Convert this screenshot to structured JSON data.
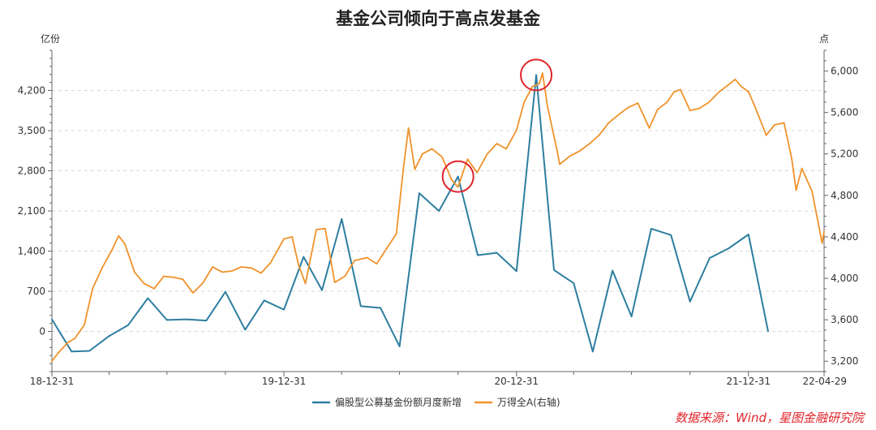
{
  "chart_data": {
    "type": "line",
    "title": "基金公司倾向于高点发基金",
    "left_axis": {
      "unit": "亿份",
      "ylim": [
        -700,
        4900
      ],
      "ticks": [
        0,
        700,
        1400,
        2100,
        2800,
        3500,
        4200
      ],
      "tick_labels": [
        "0",
        "700",
        "1,400",
        "2,100",
        "2,800",
        "3,500",
        "4,200"
      ]
    },
    "right_axis": {
      "unit": "点",
      "ylim": [
        3100,
        6200
      ],
      "ticks": [
        3200,
        3600,
        4000,
        4400,
        4800,
        5200,
        5600,
        6000
      ],
      "tick_labels": [
        "3,200",
        "3,600",
        "4,000",
        "4,400",
        "4,800",
        "5,200",
        "5,600",
        "6,000"
      ]
    },
    "x_axis": {
      "start": "2018-12-31",
      "end": "2022-04-29",
      "tick_labels": [
        "18-12-31",
        "19-12-31",
        "20-12-31",
        "21-12-31",
        "22-04-29"
      ],
      "tick_dates": [
        "2018-12-31",
        "2019-12-31",
        "2020-12-31",
        "2021-12-31",
        "2022-04-29"
      ],
      "minor_tick_dates": [
        "2019-03-31",
        "2019-06-30",
        "2019-09-30",
        "2020-03-31",
        "2020-06-30",
        "2020-09-30",
        "2021-03-31",
        "2021-06-30",
        "2021-09-30"
      ]
    },
    "grid": "horizontal-dashed",
    "legend_position": "bottom",
    "series": [
      {
        "name": "偏股型公募基金份额月度新增",
        "axis": "left",
        "color": "#2e7ea0",
        "points": [
          [
            "2018-12-31",
            210
          ],
          [
            "2019-01-31",
            -350
          ],
          [
            "2019-02-28",
            -340
          ],
          [
            "2019-03-31",
            -80
          ],
          [
            "2019-04-30",
            110
          ],
          [
            "2019-05-31",
            580
          ],
          [
            "2019-06-30",
            200
          ],
          [
            "2019-07-31",
            210
          ],
          [
            "2019-08-31",
            190
          ],
          [
            "2019-09-30",
            690
          ],
          [
            "2019-10-31",
            30
          ],
          [
            "2019-11-30",
            540
          ],
          [
            "2019-12-31",
            380
          ],
          [
            "2020-01-31",
            1300
          ],
          [
            "2020-02-29",
            720
          ],
          [
            "2020-03-31",
            1960
          ],
          [
            "2020-04-30",
            440
          ],
          [
            "2020-05-31",
            410
          ],
          [
            "2020-06-30",
            -260
          ],
          [
            "2020-07-31",
            2410
          ],
          [
            "2020-08-31",
            2100
          ],
          [
            "2020-09-30",
            2700
          ],
          [
            "2020-10-31",
            1330
          ],
          [
            "2020-11-30",
            1370
          ],
          [
            "2020-12-31",
            1050
          ],
          [
            "2021-01-31",
            4470
          ],
          [
            "2021-02-28",
            1070
          ],
          [
            "2021-03-31",
            840
          ],
          [
            "2021-04-30",
            -350
          ],
          [
            "2021-05-31",
            1060
          ],
          [
            "2021-06-30",
            260
          ],
          [
            "2021-07-31",
            1790
          ],
          [
            "2021-08-31",
            1680
          ],
          [
            "2021-09-30",
            520
          ],
          [
            "2021-10-31",
            1280
          ],
          [
            "2021-11-30",
            1450
          ],
          [
            "2021-12-31",
            1690
          ],
          [
            "2022-01-31",
            0
          ]
        ]
      },
      {
        "name": "万得全A(右轴)",
        "axis": "right",
        "color": "#f0922b",
        "points": [
          [
            "2018-12-31",
            3200
          ],
          [
            "2019-01-10",
            3280
          ],
          [
            "2019-01-25",
            3380
          ],
          [
            "2019-02-05",
            3420
          ],
          [
            "2019-02-20",
            3550
          ],
          [
            "2019-03-05",
            3900
          ],
          [
            "2019-03-20",
            4100
          ],
          [
            "2019-04-05",
            4280
          ],
          [
            "2019-04-15",
            4410
          ],
          [
            "2019-04-25",
            4330
          ],
          [
            "2019-05-10",
            4060
          ],
          [
            "2019-05-25",
            3950
          ],
          [
            "2019-06-10",
            3900
          ],
          [
            "2019-06-25",
            4020
          ],
          [
            "2019-07-10",
            4010
          ],
          [
            "2019-07-25",
            3990
          ],
          [
            "2019-08-10",
            3860
          ],
          [
            "2019-08-25",
            3950
          ],
          [
            "2019-09-10",
            4110
          ],
          [
            "2019-09-25",
            4060
          ],
          [
            "2019-10-10",
            4070
          ],
          [
            "2019-10-25",
            4110
          ],
          [
            "2019-11-10",
            4100
          ],
          [
            "2019-11-25",
            4050
          ],
          [
            "2019-12-10",
            4150
          ],
          [
            "2019-12-31",
            4380
          ],
          [
            "2020-01-13",
            4400
          ],
          [
            "2020-01-23",
            4130
          ],
          [
            "2020-02-03",
            3950
          ],
          [
            "2020-02-20",
            4470
          ],
          [
            "2020-03-05",
            4480
          ],
          [
            "2020-03-20",
            3960
          ],
          [
            "2020-04-05",
            4020
          ],
          [
            "2020-04-20",
            4170
          ],
          [
            "2020-05-10",
            4200
          ],
          [
            "2020-05-25",
            4140
          ],
          [
            "2020-06-10",
            4290
          ],
          [
            "2020-06-25",
            4430
          ],
          [
            "2020-07-06",
            5060
          ],
          [
            "2020-07-14",
            5450
          ],
          [
            "2020-07-24",
            5050
          ],
          [
            "2020-08-05",
            5200
          ],
          [
            "2020-08-20",
            5250
          ],
          [
            "2020-09-05",
            5170
          ],
          [
            "2020-09-20",
            4950
          ],
          [
            "2020-09-30",
            4880
          ],
          [
            "2020-10-15",
            5150
          ],
          [
            "2020-10-30",
            5020
          ],
          [
            "2020-11-15",
            5200
          ],
          [
            "2020-11-30",
            5300
          ],
          [
            "2020-12-15",
            5250
          ],
          [
            "2020-12-31",
            5430
          ],
          [
            "2021-01-12",
            5700
          ],
          [
            "2021-01-25",
            5850
          ],
          [
            "2021-02-05",
            5880
          ],
          [
            "2021-02-10",
            5980
          ],
          [
            "2021-02-18",
            5650
          ],
          [
            "2021-03-05",
            5230
          ],
          [
            "2021-03-09",
            5100
          ],
          [
            "2021-03-25",
            5180
          ],
          [
            "2021-04-10",
            5230
          ],
          [
            "2021-04-25",
            5300
          ],
          [
            "2021-05-10",
            5380
          ],
          [
            "2021-05-25",
            5500
          ],
          [
            "2021-06-10",
            5580
          ],
          [
            "2021-06-25",
            5650
          ],
          [
            "2021-07-10",
            5690
          ],
          [
            "2021-07-28",
            5450
          ],
          [
            "2021-08-10",
            5630
          ],
          [
            "2021-08-25",
            5700
          ],
          [
            "2021-09-05",
            5800
          ],
          [
            "2021-09-15",
            5820
          ],
          [
            "2021-09-30",
            5620
          ],
          [
            "2021-10-15",
            5640
          ],
          [
            "2021-10-30",
            5700
          ],
          [
            "2021-11-15",
            5800
          ],
          [
            "2021-11-30",
            5870
          ],
          [
            "2021-12-10",
            5920
          ],
          [
            "2021-12-20",
            5850
          ],
          [
            "2021-12-31",
            5800
          ],
          [
            "2022-01-10",
            5660
          ],
          [
            "2022-01-28",
            5380
          ],
          [
            "2022-02-10",
            5480
          ],
          [
            "2022-02-25",
            5500
          ],
          [
            "2022-03-09",
            5160
          ],
          [
            "2022-03-16",
            4850
          ],
          [
            "2022-03-25",
            5060
          ],
          [
            "2022-04-10",
            4840
          ],
          [
            "2022-04-26",
            4340
          ],
          [
            "2022-04-29",
            4450
          ]
        ]
      }
    ],
    "annotations": [
      {
        "type": "circle",
        "axis": "left",
        "date": "2020-09-30",
        "value": 2700,
        "color": "#e0252b"
      },
      {
        "type": "circle",
        "axis": "left",
        "date": "2021-01-31",
        "value": 4470,
        "color": "#e0252b"
      }
    ]
  },
  "source_note": "数据来源：Wind，星图金融研究院"
}
